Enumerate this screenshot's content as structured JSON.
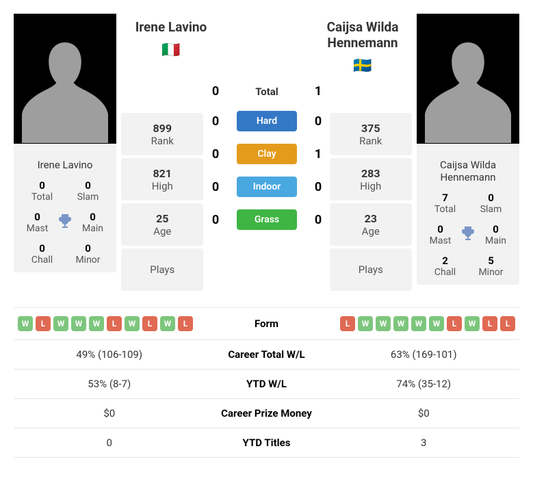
{
  "player1": {
    "name": "Irene Lavino",
    "flag": "🇮🇹",
    "rank": "899",
    "high": "821",
    "age": "25",
    "plays": "",
    "titles": {
      "total": "0",
      "slam": "0",
      "mast": "0",
      "main": "0",
      "chall": "0",
      "minor": "0"
    },
    "form": [
      "W",
      "L",
      "W",
      "W",
      "W",
      "L",
      "W",
      "L",
      "W",
      "L"
    ],
    "career_wl": "49% (106-109)",
    "ytd_wl": "53% (8-7)",
    "career_prize": "$0",
    "ytd_titles": "0"
  },
  "player2": {
    "name": "Caijsa Wilda Hennemann",
    "flag": "🇸🇪",
    "rank": "375",
    "high": "283",
    "age": "23",
    "plays": "",
    "titles": {
      "total": "7",
      "slam": "0",
      "mast": "0",
      "main": "0",
      "chall": "2",
      "minor": "5"
    },
    "form": [
      "L",
      "W",
      "W",
      "W",
      "W",
      "W",
      "L",
      "W",
      "L",
      "L"
    ],
    "career_wl": "63% (169-101)",
    "ytd_wl": "74% (35-12)",
    "career_prize": "$0",
    "ytd_titles": "3"
  },
  "h2h": {
    "total": {
      "p1": "0",
      "p2": "1"
    },
    "hard": {
      "p1": "0",
      "p2": "0"
    },
    "clay": {
      "p1": "0",
      "p2": "1"
    },
    "indoor": {
      "p1": "0",
      "p2": "0"
    },
    "grass": {
      "p1": "0",
      "p2": "0"
    }
  },
  "labels": {
    "rank": "Rank",
    "high": "High",
    "age": "Age",
    "plays": "Plays",
    "total": "Total",
    "slam": "Slam",
    "mast": "Mast",
    "main": "Main",
    "chall": "Chall",
    "minor": "Minor",
    "hard": "Hard",
    "clay": "Clay",
    "indoor": "Indoor",
    "grass": "Grass",
    "form": "Form",
    "career_wl": "Career Total W/L",
    "ytd_wl": "YTD W/L",
    "career_prize": "Career Prize Money",
    "ytd_titles": "YTD Titles"
  }
}
